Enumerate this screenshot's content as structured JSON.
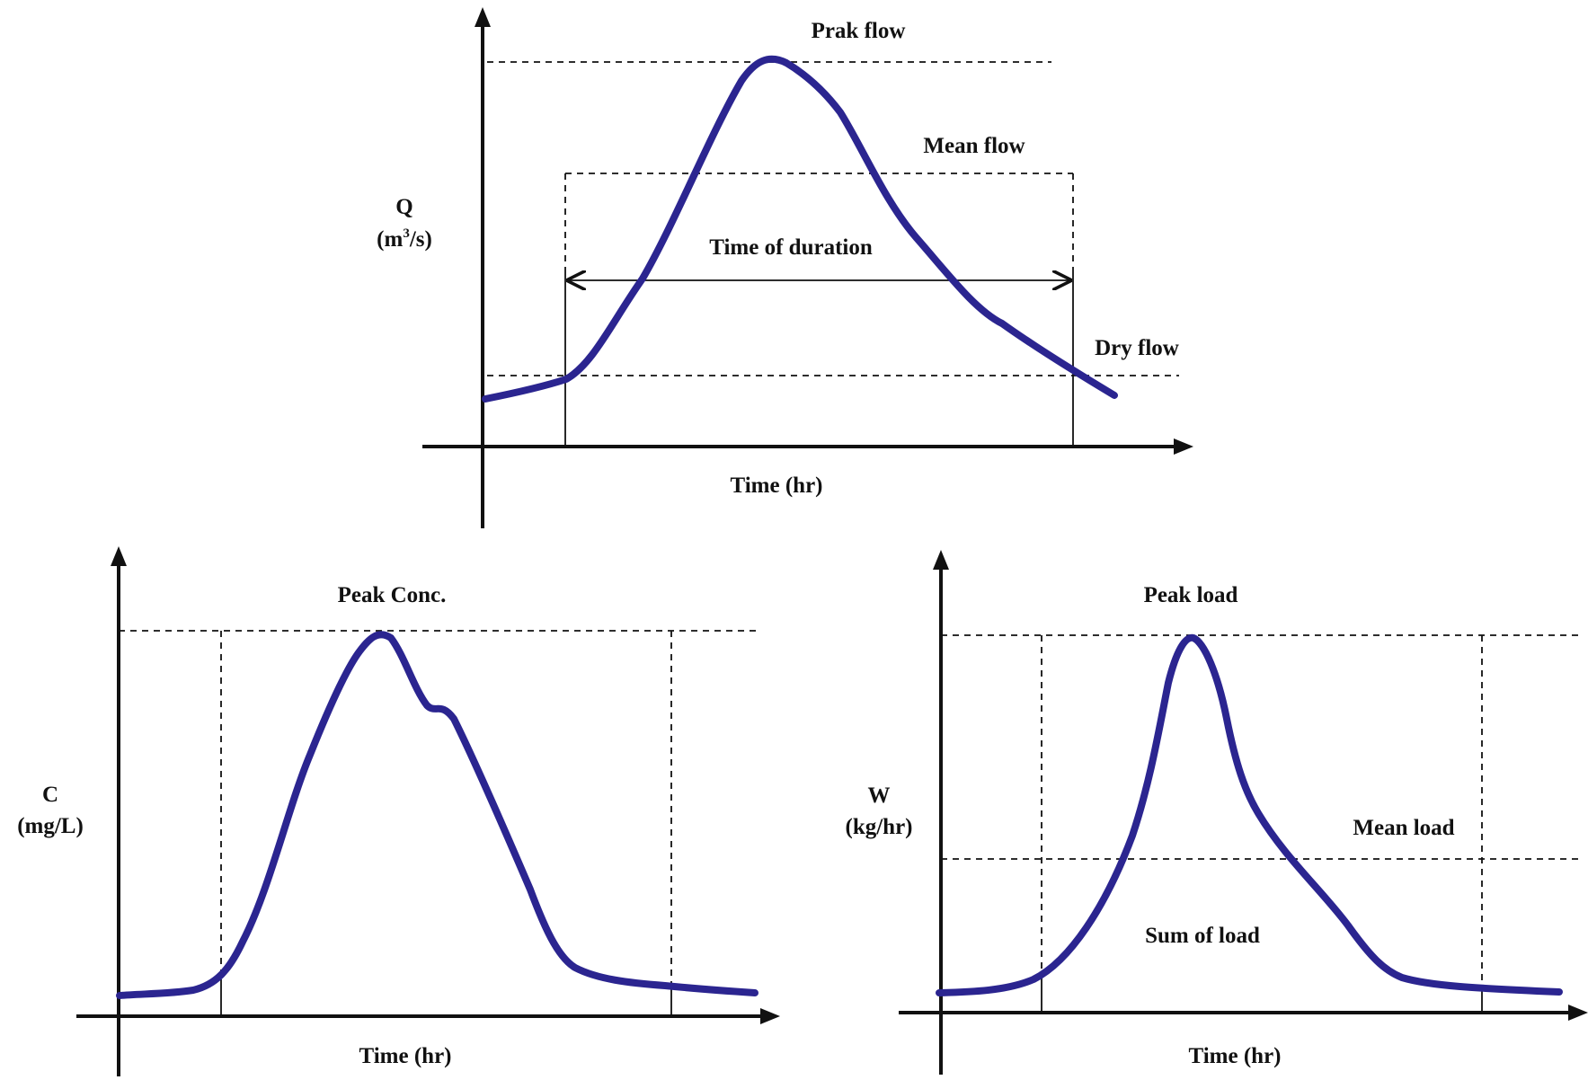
{
  "top_panel": {
    "y_label": "Q",
    "y_unit_prefix": "(m",
    "y_unit_sup": "3",
    "y_unit_suffix": "/s)",
    "x_label": "Time (hr)",
    "peak_label": "Prak flow",
    "mean_label": "Mean flow",
    "duration_label": "Time of duration",
    "dry_label": "Dry flow"
  },
  "left_panel": {
    "y_label": "C",
    "y_unit": "(mg/L)",
    "x_label": "Time (hr)",
    "peak_label": "Peak Conc."
  },
  "right_panel": {
    "y_label": "W",
    "y_unit": "(kg/hr)",
    "x_label": "Time (hr)",
    "peak_label": "Peak load",
    "mean_label": "Mean load",
    "sum_label": "Sum of load"
  },
  "colors": {
    "curve": "#2b2590",
    "axes": "#111111"
  }
}
